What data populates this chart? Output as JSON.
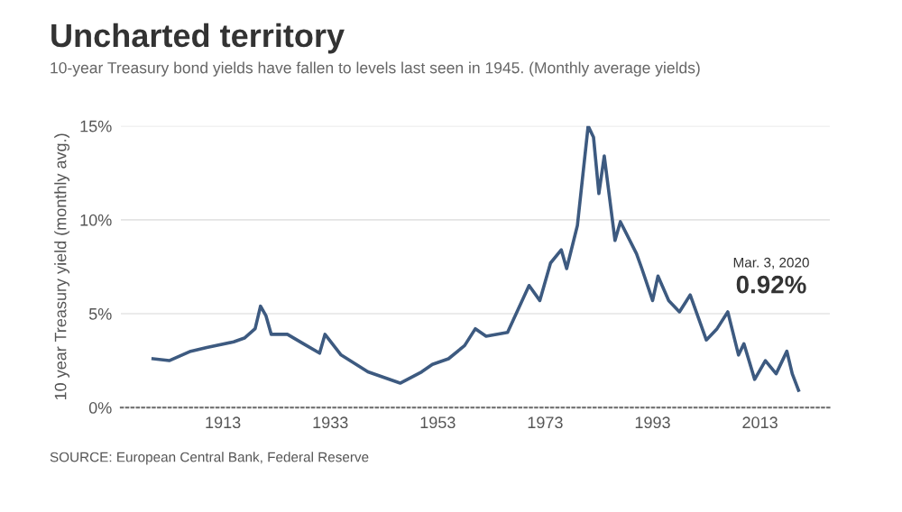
{
  "chart_data": {
    "type": "line",
    "title": "Uncharted territory",
    "subtitle": "10-year Treasury bond yields have fallen to levels last seen in 1945. (Monthly average yields)",
    "ylabel": "10 year Treasury yield (monthly avg.)",
    "x": [
      1900,
      1903,
      1907,
      1910,
      1915,
      1917,
      1919,
      1920,
      1921,
      1922,
      1925,
      1928,
      1931,
      1932,
      1935,
      1940,
      1946,
      1950,
      1952,
      1955,
      1958,
      1960,
      1962,
      1966,
      1970,
      1972,
      1974,
      1976,
      1977,
      1979,
      1981,
      1982,
      1983,
      1984,
      1986,
      1987,
      1990,
      1991,
      1993,
      1994,
      1996,
      1998,
      2000,
      2003,
      2005,
      2007,
      2009,
      2010,
      2012,
      2014,
      2016,
      2018,
      2019,
      2020.17
    ],
    "series": [
      {
        "color": "#3d5a80",
        "values": [
          2.6,
          2.5,
          3.0,
          3.2,
          3.5,
          3.7,
          4.2,
          5.4,
          4.9,
          3.9,
          3.9,
          3.4,
          2.9,
          3.9,
          2.8,
          1.9,
          1.3,
          1.9,
          2.3,
          2.6,
          3.3,
          4.2,
          3.8,
          4.0,
          6.5,
          5.7,
          7.7,
          8.4,
          7.4,
          9.7,
          15.0,
          14.4,
          11.4,
          13.4,
          8.9,
          9.9,
          8.2,
          7.4,
          5.7,
          7.0,
          5.7,
          5.1,
          6.0,
          3.6,
          4.2,
          5.1,
          2.8,
          3.4,
          1.5,
          2.5,
          1.8,
          3.0,
          1.8,
          0.92
        ]
      }
    ],
    "xlim": [
      1894,
      2026
    ],
    "xticks": [
      1913,
      1933,
      1953,
      1973,
      1993,
      2013
    ],
    "ylim": [
      0,
      15
    ],
    "yticks": [
      {
        "value": 0,
        "label": "0%"
      },
      {
        "value": 5,
        "label": "5%"
      },
      {
        "value": 10,
        "label": "10%"
      },
      {
        "value": 15,
        "label": "15%"
      }
    ],
    "grid": "y",
    "marker": "none",
    "line_style": "solid",
    "annotations": [
      "Mar. 3, 2020",
      "0.92%",
      "SOURCE: European Central Bank, Federal Reserve"
    ]
  }
}
